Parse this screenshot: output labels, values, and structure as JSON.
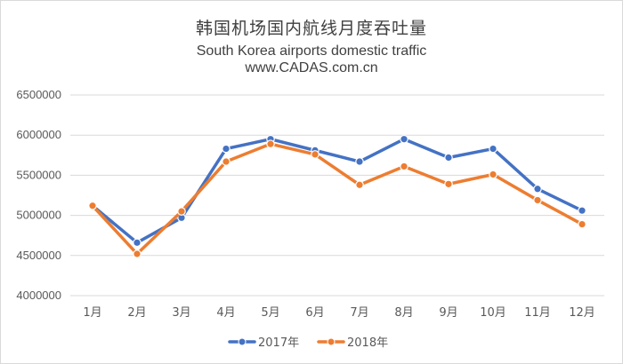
{
  "chart_data": {
    "type": "line",
    "title": "韩国机场国内航线月度吞吐量",
    "subtitle": "South Korea airports domestic traffic",
    "source": "www.CADAS.com.cn",
    "categories": [
      "1月",
      "2月",
      "3月",
      "4月",
      "5月",
      "6月",
      "7月",
      "8月",
      "9月",
      "10月",
      "11月",
      "12月"
    ],
    "y_ticks": [
      "6500000",
      "6000000",
      "5500000",
      "5000000",
      "4500000",
      "4000000"
    ],
    "ylim": [
      4000000,
      6500000
    ],
    "grid": true,
    "legend_position": "bottom",
    "series": [
      {
        "name": "2017年",
        "color": "#4472C4",
        "values": [
          5120000,
          4660000,
          4970000,
          5830000,
          5950000,
          5810000,
          5670000,
          5950000,
          5720000,
          5830000,
          5330000,
          5060000
        ]
      },
      {
        "name": "2018年",
        "color": "#ED7D31",
        "values": [
          5120000,
          4520000,
          5050000,
          5670000,
          5890000,
          5760000,
          5380000,
          5610000,
          5390000,
          5510000,
          5190000,
          4890000
        ]
      }
    ]
  }
}
